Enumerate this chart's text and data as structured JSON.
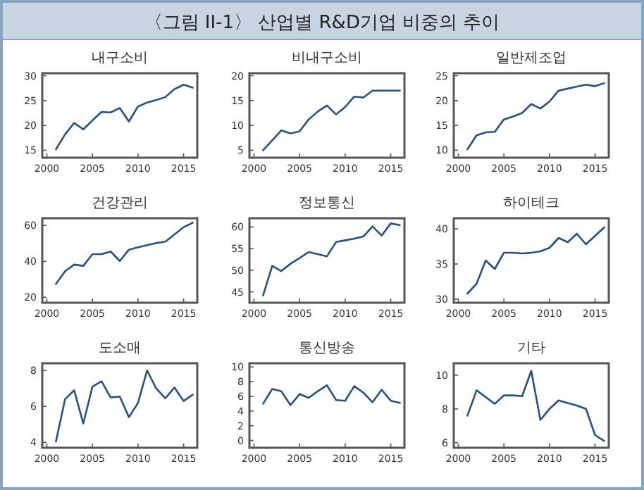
{
  "chart_data": [
    {
      "type": "other",
      "title": "〈그림 II-1〉 산업별 R&D기업 비중의 추이"
    },
    {
      "type": "line",
      "title": "내구소비",
      "x": [
        2001,
        2002,
        2003,
        2004,
        2005,
        2006,
        2007,
        2008,
        2009,
        2010,
        2011,
        2012,
        2013,
        2014,
        2015,
        2016
      ],
      "values": [
        15.2,
        18.2,
        20.5,
        19.2,
        21,
        22.7,
        22.6,
        23.5,
        20.8,
        23.8,
        24.6,
        25.1,
        25.7,
        27.3,
        28.2,
        27.6
      ],
      "color": "#2c4f7c",
      "xlim": [
        1999.5,
        2016.5
      ],
      "ylim": [
        13.5,
        30.5
      ],
      "xticks": [
        2000,
        2005,
        2010,
        2015
      ],
      "yticks": [
        15,
        20,
        25,
        30
      ]
    },
    {
      "type": "line",
      "title": "비내구소비",
      "x": [
        2001,
        2002,
        2003,
        2004,
        2005,
        2006,
        2007,
        2008,
        2009,
        2010,
        2011,
        2012,
        2013,
        2014,
        2015,
        2016
      ],
      "values": [
        5,
        7,
        9,
        8.4,
        8.8,
        11.2,
        12.8,
        14,
        12.2,
        13.7,
        15.8,
        15.6,
        17,
        17,
        17,
        17
      ],
      "color": "#2c4f7c",
      "xlim": [
        1999.5,
        2016.5
      ],
      "ylim": [
        3.5,
        20.5
      ],
      "xticks": [
        2000,
        2005,
        2010,
        2015
      ],
      "yticks": [
        5,
        10,
        15,
        20
      ]
    },
    {
      "type": "line",
      "title": "일반제조업",
      "x": [
        2001,
        2002,
        2003,
        2004,
        2005,
        2006,
        2007,
        2008,
        2009,
        2010,
        2011,
        2012,
        2013,
        2014,
        2015,
        2016
      ],
      "values": [
        10.2,
        13,
        13.6,
        13.7,
        16.2,
        16.8,
        17.5,
        19.3,
        18.4,
        19.8,
        22,
        22.4,
        22.8,
        23.2,
        22.9,
        23.5
      ],
      "color": "#2c4f7c",
      "xlim": [
        1999.5,
        2016.5
      ],
      "ylim": [
        8.5,
        25.5
      ],
      "xticks": [
        2000,
        2005,
        2010,
        2015
      ],
      "yticks": [
        10,
        15,
        20,
        25
      ]
    },
    {
      "type": "line",
      "title": "건강관리",
      "x": [
        2001,
        2002,
        2003,
        2004,
        2005,
        2006,
        2007,
        2008,
        2009,
        2010,
        2011,
        2012,
        2013,
        2014,
        2015,
        2016
      ],
      "values": [
        27.5,
        34.5,
        38.2,
        37.5,
        44,
        44,
        45.5,
        40.2,
        46.5,
        47.8,
        49,
        50.2,
        51,
        55,
        59,
        61.5
      ],
      "color": "#2c4f7c",
      "xlim": [
        1999.5,
        2016.5
      ],
      "ylim": [
        17,
        64
      ],
      "xticks": [
        2000,
        2005,
        2010,
        2015
      ],
      "yticks": [
        20,
        40,
        60
      ]
    },
    {
      "type": "line",
      "title": "정보통신",
      "x": [
        2001,
        2002,
        2003,
        2004,
        2005,
        2006,
        2007,
        2008,
        2009,
        2010,
        2011,
        2012,
        2013,
        2014,
        2015,
        2016
      ],
      "values": [
        44.2,
        51,
        49.8,
        51.5,
        52.8,
        54.2,
        53.7,
        53.2,
        56.5,
        56.9,
        57.3,
        57.8,
        60.1,
        58,
        60.8,
        60.4
      ],
      "color": "#2c4f7c",
      "xlim": [
        1999.5,
        2016.5
      ],
      "ylim": [
        42.5,
        62
      ],
      "xticks": [
        2000,
        2005,
        2010,
        2015
      ],
      "yticks": [
        45,
        50,
        55,
        60
      ]
    },
    {
      "type": "line",
      "title": "하이테크",
      "x": [
        2001,
        2002,
        2003,
        2004,
        2005,
        2006,
        2007,
        2008,
        2009,
        2010,
        2011,
        2012,
        2013,
        2014,
        2015,
        2016
      ],
      "values": [
        30.8,
        32.2,
        35.5,
        34.3,
        36.6,
        36.6,
        36.5,
        36.6,
        36.8,
        37.3,
        38.7,
        38.1,
        39.3,
        37.8,
        39,
        40.2
      ],
      "color": "#2c4f7c",
      "xlim": [
        1999.5,
        2016.5
      ],
      "ylim": [
        29.5,
        41.5
      ],
      "xticks": [
        2000,
        2005,
        2010,
        2015
      ],
      "yticks": [
        30,
        35,
        40
      ]
    },
    {
      "type": "line",
      "title": "도소매",
      "x": [
        2001,
        2002,
        2003,
        2004,
        2005,
        2006,
        2007,
        2008,
        2009,
        2010,
        2011,
        2012,
        2013,
        2014,
        2015,
        2016
      ],
      "values": [
        4.05,
        6.4,
        6.9,
        5.05,
        7.1,
        7.4,
        6.5,
        6.55,
        5.4,
        6.2,
        8.0,
        7.0,
        6.45,
        7.05,
        6.3,
        6.65
      ],
      "color": "#2c4f7c",
      "xlim": [
        1999.5,
        2016.5
      ],
      "ylim": [
        3.7,
        8.4
      ],
      "xticks": [
        2000,
        2005,
        2010,
        2015
      ],
      "yticks": [
        4,
        6,
        8
      ]
    },
    {
      "type": "line",
      "title": "통신방송",
      "x": [
        2001,
        2002,
        2003,
        2004,
        2005,
        2006,
        2007,
        2008,
        2009,
        2010,
        2011,
        2012,
        2013,
        2014,
        2015,
        2016
      ],
      "values": [
        5,
        7,
        6.7,
        4.8,
        6.3,
        5.8,
        6.7,
        7.5,
        5.5,
        5.4,
        7.4,
        6.5,
        5.2,
        6.9,
        5.4,
        5.1
      ],
      "color": "#2c4f7c",
      "xlim": [
        1999.5,
        2016.5
      ],
      "ylim": [
        -1,
        10.5
      ],
      "xticks": [
        2000,
        2005,
        2010,
        2015
      ],
      "yticks": [
        0,
        2,
        4,
        6,
        8,
        10
      ]
    },
    {
      "type": "line",
      "title": "기타",
      "x": [
        2001,
        2002,
        2003,
        2004,
        2005,
        2006,
        2007,
        2008,
        2009,
        2010,
        2011,
        2012,
        2013,
        2014,
        2015,
        2016
      ],
      "values": [
        7.6,
        9.1,
        8.7,
        8.3,
        8.8,
        8.8,
        8.75,
        10.25,
        7.35,
        8.0,
        8.5,
        8.35,
        8.2,
        8.0,
        6.45,
        6.1
      ],
      "color": "#2c4f7c",
      "xlim": [
        1999.5,
        2016.5
      ],
      "ylim": [
        5.7,
        10.7
      ],
      "xticks": [
        2000,
        2005,
        2010,
        2015
      ],
      "yticks": [
        6,
        8,
        10
      ]
    }
  ]
}
